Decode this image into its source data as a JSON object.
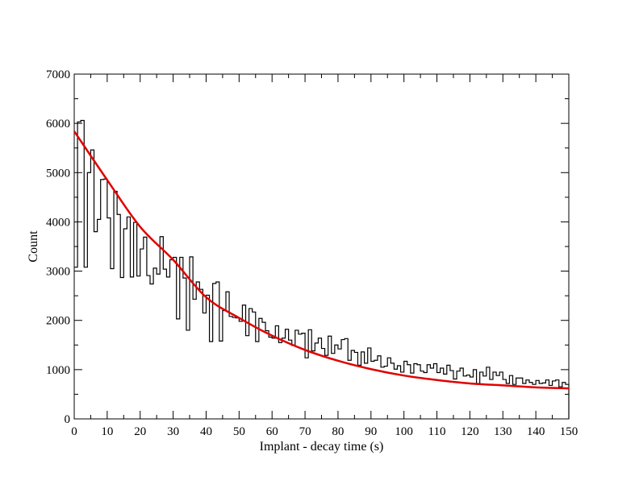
{
  "chart_data": {
    "type": "histogram_with_fit",
    "xlabel": "Implant - decay time (s)",
    "ylabel": "Count",
    "xlim": [
      0,
      150
    ],
    "ylim": [
      0,
      7000
    ],
    "xticks": [
      "0",
      "10",
      "20",
      "30",
      "40",
      "50",
      "60",
      "70",
      "80",
      "90",
      "100",
      "110",
      "120",
      "130",
      "140",
      "150"
    ],
    "yticks": [
      "0",
      "1000",
      "2000",
      "3000",
      "4000",
      "5000",
      "6000",
      "7000"
    ],
    "bin_width": 1,
    "hist_color": "#000000",
    "fit_color": "#e00000",
    "histogram_counts": [
      3080,
      6030,
      6060,
      3080,
      5000,
      5460,
      3800,
      4050,
      4860,
      4870,
      4080,
      3050,
      4620,
      4150,
      2870,
      3860,
      4100,
      2880,
      3990,
      2900,
      3450,
      3690,
      2910,
      2740,
      3060,
      2940,
      3700,
      3040,
      2880,
      3230,
      3280,
      2030,
      3280,
      2860,
      1800,
      3290,
      2430,
      2780,
      2630,
      2150,
      2510,
      1570,
      2750,
      2780,
      1580,
      2200,
      2580,
      2080,
      2060,
      2050,
      1980,
      2310,
      1690,
      2240,
      2170,
      1570,
      2040,
      1960,
      1790,
      1660,
      1640,
      1890,
      1550,
      1640,
      1820,
      1600,
      1490,
      1800,
      1720,
      1740,
      1240,
      1810,
      1380,
      1540,
      1640,
      1430,
      1290,
      1680,
      1330,
      1500,
      1420,
      1610,
      1630,
      1190,
      1390,
      1350,
      1090,
      1360,
      1130,
      1440,
      1170,
      1190,
      1280,
      1050,
      1070,
      1240,
      1130,
      1010,
      1080,
      950,
      1170,
      1100,
      930,
      1120,
      1100,
      970,
      940,
      1100,
      1030,
      1120,
      940,
      1030,
      910,
      1090,
      980,
      810,
      970,
      1030,
      870,
      890,
      850,
      1000,
      720,
      950,
      870,
      1050,
      800,
      950,
      880,
      950,
      800,
      720,
      880,
      700,
      830,
      830,
      720,
      790,
      740,
      700,
      780,
      720,
      730,
      790,
      680,
      770,
      790,
      650,
      740,
      700
    ],
    "fit_points": [
      [
        0,
        5840
      ],
      [
        10,
        4850
      ],
      [
        20,
        3900
      ],
      [
        30,
        3230
      ],
      [
        40,
        2470
      ],
      [
        50,
        2050
      ],
      [
        60,
        1690
      ],
      [
        70,
        1400
      ],
      [
        80,
        1180
      ],
      [
        90,
        1010
      ],
      [
        100,
        880
      ],
      [
        110,
        790
      ],
      [
        120,
        720
      ],
      [
        130,
        680
      ],
      [
        140,
        640
      ],
      [
        150,
        620
      ]
    ]
  }
}
